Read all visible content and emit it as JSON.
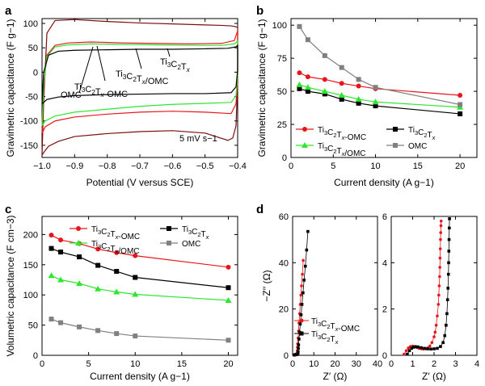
{
  "colors": {
    "ti3c2tx_omc": "#e8161b",
    "ti3c2tx": "#000000",
    "ti3c2tx_slash_omc": "#2ee62e",
    "omc": "#808080",
    "dark_red": "#7a0d0d",
    "axis": "#000000"
  },
  "panels": {
    "a": {
      "letter": "a",
      "xlabel": "Potential (V versus SCE)",
      "ylabel": "Gravimetric capacitance (F g−1)",
      "annotation": "5 mV s−1",
      "labels": {
        "omc": "OMC",
        "ti3c2tx_omc": "Ti3C2Tx-OMC",
        "ti3c2tx_slash_omc": "Ti3C2Tx/OMC",
        "ti3c2tx": "Ti3C2Tx"
      }
    },
    "b": {
      "letter": "b",
      "xlabel": "Current density (A g−1)",
      "ylabel": "Gravimetric capacitance (F g−1)"
    },
    "c": {
      "letter": "c",
      "xlabel": "Current density (A g−1)",
      "ylabel": "Volumetric capacitance (F cm−3)"
    },
    "d": {
      "letter": "d",
      "xlabel_left": "Z′ (Ω)",
      "xlabel_right": "Z′ (Ω)",
      "ylabel": "−Z′′ (Ω)"
    }
  },
  "legend": {
    "ti3c2tx_omc": "Ti3C2Tx-OMC",
    "ti3c2tx": "Ti3C2Tx",
    "ti3c2tx_slash_omc": "Ti3C2Tx/OMC",
    "omc": "OMC"
  },
  "chart_data": [
    {
      "id": "a",
      "type": "line",
      "xlabel": "Potential (V versus SCE)",
      "ylabel": "Gravimetric capacitance (F g−1)",
      "xlim": [
        -1.0,
        -0.4
      ],
      "ylim": [
        -175,
        110
      ],
      "xticks": [
        -1.0,
        -0.9,
        -0.8,
        -0.7,
        -0.6,
        -0.5,
        -0.4
      ],
      "yticks": [
        -150,
        -100,
        -50,
        0,
        50,
        100
      ],
      "series": [
        {
          "key": "omc",
          "color": "#7a0d0d",
          "x": [
            -1.0,
            -0.995,
            -0.985,
            -0.96,
            -0.9,
            -0.8,
            -0.7,
            -0.6,
            -0.5,
            -0.45,
            -0.42,
            -0.41,
            -0.4,
            -0.4,
            -0.405,
            -0.415,
            -0.43,
            -0.5,
            -0.6,
            -0.7,
            -0.8,
            -0.9,
            -0.95,
            -0.98,
            -0.993,
            -1.0
          ],
          "y": [
            -170,
            -60,
            80,
            106,
            108,
            104,
            101,
            99,
            97,
            96,
            95,
            94,
            92,
            -20,
            -110,
            -135,
            -140,
            -125,
            -120,
            -122,
            -126,
            -132,
            -142,
            -152,
            -163,
            -170
          ]
        },
        {
          "key": "ti3c2tx_omc",
          "color": "#e8161b",
          "x": [
            -1.0,
            -0.995,
            -0.985,
            -0.96,
            -0.92,
            -0.85,
            -0.75,
            -0.65,
            -0.55,
            -0.45,
            -0.41,
            -0.4,
            -0.4,
            -0.405,
            -0.42,
            -0.5,
            -0.6,
            -0.7,
            -0.8,
            -0.9,
            -0.96,
            -0.99,
            -1.0
          ],
          "y": [
            -125,
            -30,
            35,
            55,
            60,
            62,
            60,
            59,
            58,
            59,
            65,
            85,
            -10,
            -65,
            -85,
            -82,
            -80,
            -82,
            -86,
            -92,
            -100,
            -112,
            -125
          ]
        },
        {
          "key": "ti3c2tx_slash_omc",
          "color": "#2ee62e",
          "x": [
            -1.0,
            -0.995,
            -0.985,
            -0.96,
            -0.92,
            -0.85,
            -0.75,
            -0.65,
            -0.55,
            -0.45,
            -0.41,
            -0.4,
            -0.4,
            -0.405,
            -0.42,
            -0.5,
            -0.6,
            -0.7,
            -0.8,
            -0.9,
            -0.96,
            -0.99,
            -1.0
          ],
          "y": [
            -110,
            -25,
            32,
            52,
            56,
            58,
            57,
            56,
            55,
            55,
            58,
            64,
            -5,
            -48,
            -62,
            -64,
            -66,
            -70,
            -76,
            -82,
            -90,
            -100,
            -110
          ]
        },
        {
          "key": "ti3c2tx",
          "color": "#000000",
          "x": [
            -1.0,
            -0.995,
            -0.98,
            -0.95,
            -0.9,
            -0.8,
            -0.7,
            -0.6,
            -0.5,
            -0.43,
            -0.405,
            -0.4,
            -0.4,
            -0.405,
            -0.42,
            -0.5,
            -0.6,
            -0.7,
            -0.8,
            -0.9,
            -0.95,
            -0.985,
            -1.0
          ],
          "y": [
            -65,
            0,
            35,
            43,
            45,
            46,
            47,
            47,
            48,
            49,
            52,
            55,
            5,
            -30,
            -42,
            -44,
            -44,
            -45,
            -46,
            -48,
            -51,
            -56,
            -65
          ]
        }
      ]
    },
    {
      "id": "b",
      "type": "line",
      "xlabel": "Current density (A g−1)",
      "ylabel": "Gravimetric capacitance (F g−1)",
      "xlim": [
        0,
        22
      ],
      "ylim": [
        0,
        105
      ],
      "xticks": [
        0,
        5,
        10,
        15,
        20
      ],
      "yticks": [
        0,
        25,
        50,
        75,
        100
      ],
      "legend_position": "bottom-left",
      "series": [
        {
          "key": "ti3c2tx_omc",
          "name": "Ti3C2Tx-OMC",
          "color": "#e8161b",
          "marker": "circle",
          "x": [
            1,
            2,
            4,
            6,
            8,
            10,
            20
          ],
          "y": [
            64,
            61,
            59,
            56,
            54,
            52,
            47
          ]
        },
        {
          "key": "ti3c2tx",
          "name": "Ti3C2Tx",
          "color": "#000000",
          "marker": "square",
          "x": [
            1,
            2,
            4,
            6,
            8,
            10,
            20
          ],
          "y": [
            52,
            50,
            48,
            44,
            41,
            39,
            33
          ]
        },
        {
          "key": "ti3c2tx_slash_omc",
          "name": "Ti3C2Tx/OMC",
          "color": "#2ee62e",
          "marker": "triangle",
          "x": [
            1,
            2,
            4,
            6,
            8,
            10,
            20
          ],
          "y": [
            55,
            53,
            50,
            47,
            44,
            42,
            38
          ]
        },
        {
          "key": "omc",
          "name": "OMC",
          "color": "#808080",
          "marker": "square",
          "x": [
            1,
            2,
            4,
            6,
            8,
            10,
            20
          ],
          "y": [
            99,
            89,
            77,
            68,
            59,
            53,
            40
          ]
        }
      ]
    },
    {
      "id": "c",
      "type": "line",
      "xlabel": "Current density (A g−1)",
      "ylabel": "Volumetric capacitance (F cm−3)",
      "xlim": [
        0,
        21
      ],
      "ylim": [
        0,
        230
      ],
      "xticks": [
        0,
        5,
        10,
        15,
        20
      ],
      "yticks": [
        0,
        50,
        100,
        150,
        200
      ],
      "legend_position": "top",
      "series": [
        {
          "key": "ti3c2tx_omc",
          "name": "Ti3C2Tx-OMC",
          "color": "#e8161b",
          "marker": "circle",
          "x": [
            1,
            2,
            4,
            6,
            8,
            10,
            20
          ],
          "y": [
            199,
            191,
            185,
            176,
            170,
            165,
            146
          ]
        },
        {
          "key": "ti3c2tx",
          "name": "Ti3C2Tx",
          "color": "#000000",
          "marker": "square",
          "x": [
            1,
            2,
            4,
            6,
            8,
            10,
            20
          ],
          "y": [
            177,
            171,
            163,
            149,
            139,
            129,
            112
          ]
        },
        {
          "key": "ti3c2tx_slash_omc",
          "name": "Ti3C2Tx/OMC",
          "color": "#2ee62e",
          "marker": "triangle",
          "x": [
            1,
            2,
            4,
            6,
            8,
            10,
            20
          ],
          "y": [
            132,
            125,
            119,
            110,
            105,
            101,
            91
          ]
        },
        {
          "key": "omc",
          "name": "OMC",
          "color": "#808080",
          "marker": "square",
          "x": [
            1,
            2,
            4,
            6,
            8,
            10,
            20
          ],
          "y": [
            60,
            54,
            47,
            41,
            36,
            32,
            25
          ]
        }
      ]
    },
    {
      "id": "d-left",
      "type": "scatter",
      "xlabel": "Z′ (Ω)",
      "ylabel": "−Z′′ (Ω)",
      "xlim": [
        0,
        40
      ],
      "ylim": [
        0,
        60
      ],
      "xticks": [
        0,
        10,
        20,
        30,
        40
      ],
      "yticks": [
        0,
        20,
        40,
        60
      ],
      "legend_position": "bottom-right",
      "series": [
        {
          "key": "ti3c2tx_omc",
          "name": "Ti3C2Tx-OMC",
          "color": "#e8161b",
          "marker": "circle",
          "x": [
            0.8,
            1.0,
            1.2,
            1.4,
            1.6,
            1.8,
            2.0,
            2.1,
            2.2,
            2.3,
            2.4,
            2.6,
            2.8,
            3.0,
            3.3,
            3.6,
            3.9,
            4.2,
            4.6,
            5.0
          ],
          "y": [
            0.1,
            0.2,
            0.3,
            0.35,
            0.35,
            0.3,
            0.5,
            1.0,
            2.0,
            3.5,
            5.0,
            7.5,
            10.5,
            14,
            18,
            22,
            26,
            30,
            35,
            41
          ]
        },
        {
          "key": "ti3c2tx",
          "name": "Ti3C2Tx",
          "color": "#000000",
          "marker": "square",
          "x": [
            0.8,
            1.0,
            1.3,
            1.6,
            1.9,
            2.2,
            2.5,
            2.6,
            2.7,
            2.8,
            3.0,
            3.3,
            3.6,
            4.0,
            4.4,
            4.9,
            5.4,
            6.0,
            6.6,
            7.2
          ],
          "y": [
            0.1,
            0.2,
            0.3,
            0.35,
            0.35,
            0.4,
            0.8,
            1.5,
            3.0,
            4.5,
            7.0,
            10,
            13.5,
            17.5,
            22,
            27,
            32.5,
            38.5,
            45.5,
            53.5
          ]
        }
      ]
    },
    {
      "id": "d-right",
      "type": "scatter",
      "xlabel": "Z′ (Ω)",
      "xlim": [
        0,
        4
      ],
      "ylim": [
        0,
        6
      ],
      "xticks": [
        0,
        1,
        2,
        3,
        4
      ],
      "yticks": [
        0,
        2,
        4,
        6
      ],
      "series": [
        {
          "key": "ti3c2tx_omc",
          "name": "Ti3C2Tx-OMC",
          "color": "#e8161b",
          "marker": "circle",
          "x": [
            0.6,
            0.7,
            0.8,
            0.9,
            1.0,
            1.1,
            1.2,
            1.3,
            1.4,
            1.5,
            1.6,
            1.7,
            1.8,
            1.9,
            2.0,
            2.05,
            2.1,
            2.15,
            2.2,
            2.22,
            2.24,
            2.26,
            2.27,
            2.28,
            2.29,
            2.3,
            2.31,
            2.32,
            2.33
          ],
          "y": [
            0.05,
            0.2,
            0.32,
            0.38,
            0.4,
            0.38,
            0.34,
            0.3,
            0.28,
            0.27,
            0.28,
            0.32,
            0.4,
            0.55,
            0.8,
            1.0,
            1.3,
            1.7,
            2.2,
            2.6,
            3.0,
            3.4,
            3.8,
            4.2,
            4.6,
            5.0,
            5.3,
            5.6,
            5.8
          ]
        },
        {
          "key": "ti3c2tx",
          "name": "Ti3C2Tx",
          "color": "#000000",
          "marker": "square",
          "x": [
            0.75,
            0.85,
            0.95,
            1.05,
            1.15,
            1.25,
            1.4,
            1.55,
            1.7,
            1.85,
            2.0,
            2.15,
            2.3,
            2.42,
            2.5,
            2.56,
            2.6,
            2.63,
            2.65,
            2.67,
            2.68,
            2.69,
            2.7,
            2.71,
            2.72
          ],
          "y": [
            0.05,
            0.2,
            0.3,
            0.35,
            0.37,
            0.36,
            0.33,
            0.3,
            0.28,
            0.27,
            0.28,
            0.3,
            0.38,
            0.55,
            0.85,
            1.3,
            1.8,
            2.4,
            2.9,
            3.5,
            4.0,
            4.5,
            5.0,
            5.5,
            5.9
          ]
        }
      ]
    }
  ]
}
